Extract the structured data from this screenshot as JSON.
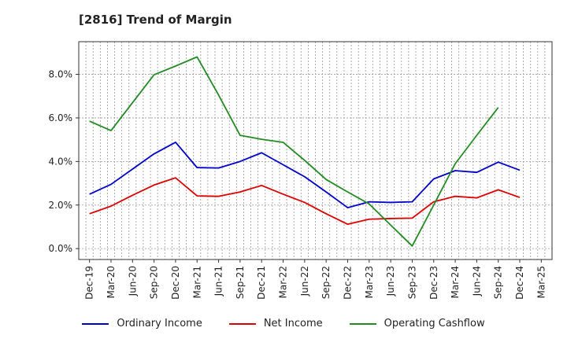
{
  "chart_data": {
    "type": "line",
    "title": "[2816]  Trend of Margin",
    "xlabel": "",
    "ylabel": "",
    "x": [
      "Dec-19",
      "Mar-20",
      "Jun-20",
      "Sep-20",
      "Dec-20",
      "Mar-21",
      "Jun-21",
      "Sep-21",
      "Dec-21",
      "Mar-22",
      "Jun-22",
      "Sep-22",
      "Dec-22",
      "Mar-23",
      "Jun-23",
      "Sep-23",
      "Dec-23",
      "Mar-24",
      "Jun-24",
      "Sep-24",
      "Dec-24",
      "Mar-25"
    ],
    "ylim": [
      -0.5,
      9.5
    ],
    "yticks": [
      0.0,
      2.0,
      4.0,
      6.0,
      8.0
    ],
    "ytick_labels": [
      "0.0%",
      "2.0%",
      "4.0%",
      "6.0%",
      "8.0%"
    ],
    "grid": true,
    "legend_position": "bottom",
    "series": [
      {
        "name": "Ordinary Income",
        "color": "#0000cc",
        "values": [
          2.5,
          2.95,
          3.65,
          4.35,
          4.88,
          3.72,
          3.7,
          4.0,
          4.4,
          3.85,
          3.3,
          2.6,
          1.88,
          2.15,
          2.12,
          2.15,
          3.2,
          3.58,
          3.5,
          3.97,
          3.6,
          null
        ]
      },
      {
        "name": "Net Income",
        "color": "#dd0000",
        "values": [
          1.6,
          1.95,
          2.45,
          2.92,
          3.25,
          2.42,
          2.4,
          2.6,
          2.9,
          2.5,
          2.12,
          1.6,
          1.12,
          1.35,
          1.38,
          1.4,
          2.15,
          2.4,
          2.33,
          2.7,
          2.35,
          null
        ]
      },
      {
        "name": "Operating Cashflow",
        "color": "#228b22",
        "values": [
          5.85,
          5.42,
          6.7,
          7.98,
          8.38,
          8.8,
          7.05,
          5.2,
          5.02,
          4.88,
          4.05,
          3.17,
          2.6,
          2.05,
          1.08,
          0.12,
          2.0,
          3.9,
          5.2,
          6.48,
          null,
          null
        ]
      }
    ]
  }
}
